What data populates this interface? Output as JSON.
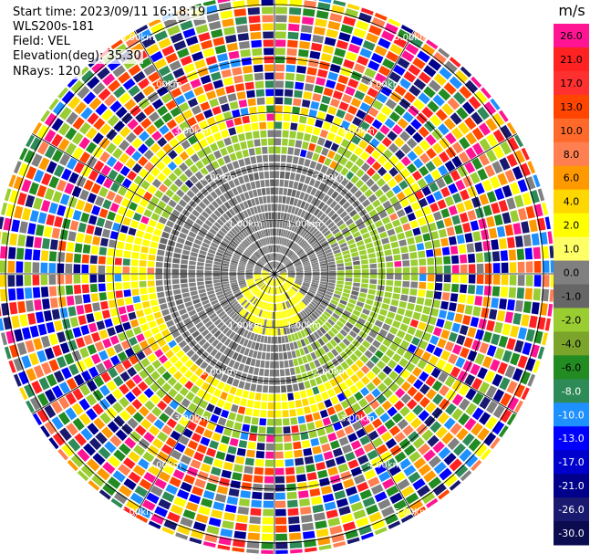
{
  "header": {
    "start_time": "Start time: 2023/09/11 16:18:19",
    "station": "WLS200s-181",
    "field": "Field: VEL",
    "elevation": "Elevation(deg): 35.30",
    "nrays": "NRays: 120"
  },
  "chart_data": {
    "type": "heatmap",
    "projection": "polar-ppi",
    "field": "VEL",
    "nrays": 120,
    "range_rings_km": [
      1.0,
      2.0,
      3.0,
      4.0,
      5.0
    ],
    "range_labels": [
      "1.00km",
      "2.00km",
      "3.00km",
      "4.00km",
      "5.00km"
    ],
    "colorbar": {
      "unit": "m/s",
      "ticks": [
        "26.0",
        "21.0",
        "17.0",
        "13.0",
        "10.0",
        "8.0",
        "6.0",
        "4.0",
        "2.0",
        "1.0",
        "0.0",
        "-1.0",
        "-2.0",
        "-4.0",
        "-6.0",
        "-8.0",
        "-10.0",
        "-13.0",
        "-17.0",
        "-21.0",
        "-26.0",
        "-30.0"
      ],
      "colors": [
        "#ff1493",
        "#ff2222",
        "#ff3030",
        "#ff4500",
        "#ff6a2a",
        "#ff7f50",
        "#ff9900",
        "#ffd700",
        "#ffff00",
        "#ffff66",
        "#808080",
        "#666666",
        "#9acd32",
        "#7aa52a",
        "#228b22",
        "#2e8b57",
        "#1e90ff",
        "#0000ff",
        "#0000cd",
        "#00008b",
        "#191970",
        "#0b0b50"
      ]
    }
  }
}
